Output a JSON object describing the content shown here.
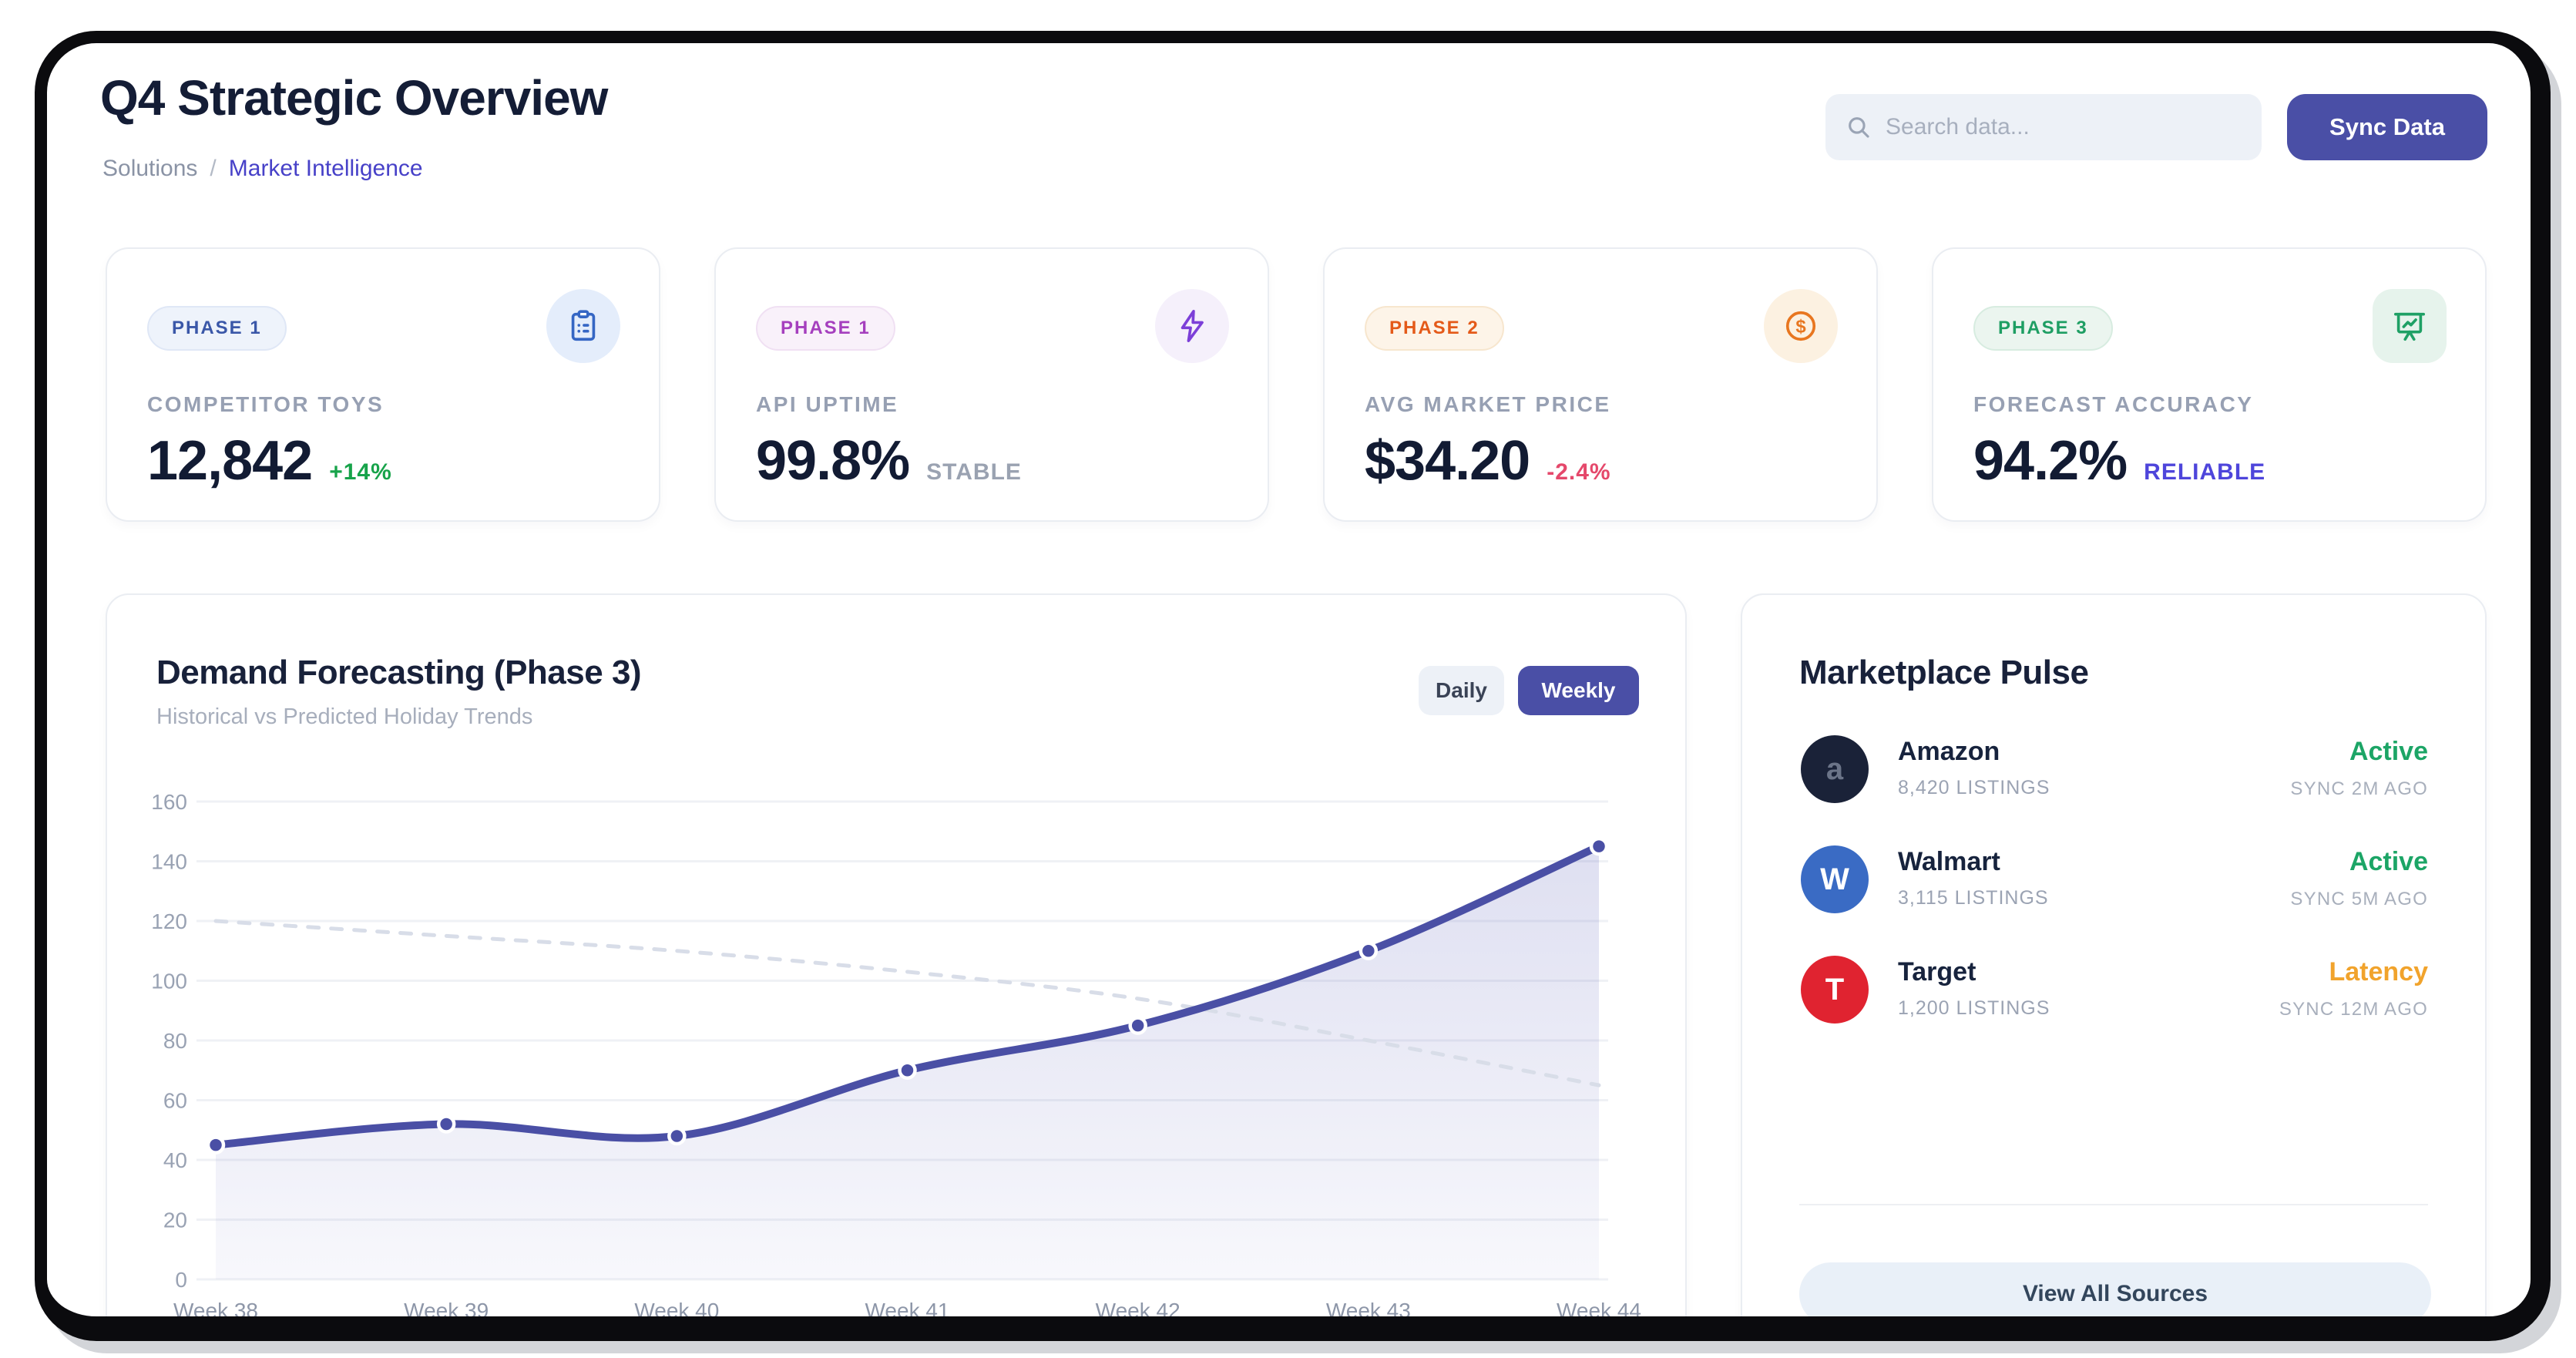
{
  "header": {
    "title": "Q4 Strategic Overview",
    "breadcrumb": {
      "parent": "Solutions",
      "separator": "/",
      "current": "Market Intelligence"
    },
    "search_placeholder": "Search data...",
    "sync_label": "Sync Data"
  },
  "colors": {
    "accent_indigo": "#4a4fa6",
    "positive_green": "#17a34a",
    "negative_red": "#e5486b",
    "warning_amber": "#f1a32c",
    "frame_black": "#0b0b0e"
  },
  "kpis": [
    {
      "phase": "PHASE 1",
      "label": "COMPETITOR TOYS",
      "value": "12,842",
      "delta": "+14%",
      "delta_color": "#17a34a",
      "icon": "clipboard-icon",
      "icon_color": "#3566c4",
      "icon_bg": "#e4edfb",
      "icon_shape": "circle",
      "badge_bg": "#eef3fb",
      "badge_border": "#dfe7f6",
      "badge_color": "#3a57a8"
    },
    {
      "phase": "PHASE 1",
      "label": "API UPTIME",
      "value": "99.8%",
      "delta": "STABLE",
      "delta_color": "#9aa2b1",
      "icon": "bolt-icon",
      "icon_color": "#7c3fd8",
      "icon_bg": "#f5f0fb",
      "icon_shape": "circle",
      "badge_bg": "#f9f1fa",
      "badge_border": "#f0e0f3",
      "badge_color": "#a53fbe"
    },
    {
      "phase": "PHASE 2",
      "label": "AVG MARKET PRICE",
      "value": "$34.20",
      "delta": "-2.4%",
      "delta_color": "#e5486b",
      "icon": "dollar-icon",
      "icon_color": "#e8761f",
      "icon_bg": "#fcf1e1",
      "icon_shape": "circle",
      "badge_bg": "#fdf4e8",
      "badge_border": "#f7e6ce",
      "badge_color": "#e45a19"
    },
    {
      "phase": "PHASE 3",
      "label": "FORECAST ACCURACY",
      "value": "94.2%",
      "delta": "RELIABLE",
      "delta_color": "#4e45db",
      "icon": "board-chart-icon",
      "icon_color": "#1fa065",
      "icon_bg": "#e6f3ec",
      "icon_shape": "rounded",
      "badge_bg": "#ebf5ef",
      "badge_border": "#d7ece0",
      "badge_color": "#1e9e63"
    }
  ],
  "chart": {
    "title": "Demand Forecasting (Phase 3)",
    "subtitle": "Historical vs Predicted Holiday Trends",
    "toggles": {
      "daily": "Daily",
      "weekly": "Weekly",
      "active": "Weekly"
    },
    "chart_data": {
      "type": "line",
      "categories": [
        "Week 38",
        "Week 39",
        "Week 40",
        "Week 41",
        "Week 42",
        "Week 43",
        "Week 44"
      ],
      "series": [
        {
          "name": "Historical demand",
          "style": "solid",
          "color": "#4a4fa5",
          "area": true,
          "points": true,
          "values": [
            45,
            52,
            48,
            70,
            85,
            110,
            145
          ]
        },
        {
          "name": "Predicted baseline",
          "style": "dashed",
          "color": "#d8dde8",
          "area": false,
          "points": false,
          "values": [
            120,
            115,
            110,
            103,
            94,
            80,
            65
          ]
        }
      ],
      "ylim": [
        0,
        160
      ],
      "ytick": 20,
      "grid": true,
      "legend": "none",
      "grid_color": "#eff1f5",
      "axis_label_color": "#99a2b3"
    }
  },
  "marketplace": {
    "title": "Marketplace Pulse",
    "sources": [
      {
        "name": "Amazon",
        "listings": "8,420 LISTINGS",
        "status": "Active",
        "sync": "SYNC 2M AGO",
        "status_color": "#1ca566",
        "avatar_letter": "a",
        "avatar_bg": "#1a2238",
        "avatar_fg": "#6b7488"
      },
      {
        "name": "Walmart",
        "listings": "3,115 LISTINGS",
        "status": "Active",
        "sync": "SYNC 5M AGO",
        "status_color": "#1ca566",
        "avatar_letter": "W",
        "avatar_bg": "#3a6bc4",
        "avatar_fg": "#ffffff"
      },
      {
        "name": "Target",
        "listings": "1,200 LISTINGS",
        "status": "Latency",
        "sync": "SYNC 12M AGO",
        "status_color": "#f1a32c",
        "avatar_letter": "T",
        "avatar_bg": "#e02330",
        "avatar_fg": "#ffffff"
      }
    ],
    "view_all_label": "View All Sources"
  }
}
